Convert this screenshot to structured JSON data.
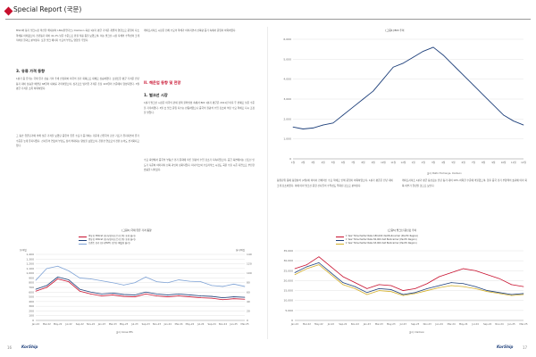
{
  "header": {
    "title": "Special Report (국문)"
  },
  "left_page": {
    "paragraphs": [
      "MSCI와 동기 벌크시장 확산한 해사분야 LNG(천연가스) Clarkson 측정 1분기 평균 가격은 개별적 영향으로 운임이 다소 약세를 이어왔으며, 전년동기 대비 41.2% 낮은 수준으로 환율 적용 등을 보였으며, 이는 벌크선 시장 자체의 수익성이 크게 저하된 결과로 분석된다. 또한 벌크 에너지 수요의 부진도 영향을 주었다.",
      "케이프사이즈 시장은 전체 수요의 약세가 이어지면서 선복량 증가 속에서 운임이 하락하였다."
    ],
    "section3": {
      "heading": "3. 유류 가격 동향",
      "paragraphs": [
        "1분기 중 유가는 국제 유가 상승 가격 추세 안정화와 미국의 경기 회복으로 대체로 상승하였다. 브렌트유 평균 가격은 전년 동기 대비 상승한 배럴당 68달러 내외를 기록하였으며, 싱가포르 벙커유 가격은 톤당 420달러 수준에서 형성되었다. 3월 평균 가격은 소폭 하락하였다.",
        "그 동안 유류단가에 의해 낮은 가격을 보였던 중유의 유류 수요가 증가하는 가운데 산유국의 감산 기조가 유지되면서 유가 수준은 높게 유지되었다. 선사들의 연료비 부담도 점차 확대되는 양상을 보였으며, 친환경 연료로의 전환 논의도 본격화되고 있다.",
        "향후 유가는 OPEC+의 감산 정책과 세계 경기 흐름에 따라 변동성이 커질 것으로 예상되며, 해운업계는 연료 효율 개선 노력을 지속할 필요가 있다."
      ]
    },
    "chart": {
      "title": "[그림4] 국제 유류 가격 동향",
      "legend": [
        "중유유 380cst (유가/싱가포르) (단위: 톤당 달러)",
        "중유유 180cst (유가/싱가포르) (단위: 톤당 달러)",
        "브렌트 유가 (유가/WTI) (단위: 배럴당 달러)"
      ],
      "left_axis_title": "톤/배럴",
      "right_axis_title": "달러/배럴",
      "source": "출처: Korea PPS"
    }
  },
  "right_page": {
    "section": {
      "heading": "1. 벌크선 시장",
      "paragraphs": [
        "1분기 벌크선 시장은 미국의 관세 정책 불확실성 속에서 BDI 1분기 평균은 2011년 이후 두 번째로 낮은 수준을 기록하였다. 3월 초 벌크 운임 지수는 반등하였으나 중국의 철광석 수입 감소와 석탄 수요 약세로 다시 조정을 받았다.",
        "수요 측면에서 중국의 부동산 경기 둔화에 따른 철광석 수입 감소가 지속되었으며, 공급 측면에서는 신조선 인도가 꾸준히 이어지며 선복 과잉이 심화되었다. 파나막스와 수프라막스 시장도 곡물 수출 시즌 지연으로 부진한 흐름을 나타냈다."
      ]
    },
    "section_ii": {
      "heading": "II. 해운업 동향 및 전망"
    },
    "top_chart": {
      "title": "[그림1] BDI 추이",
      "source": "출처: Baltic Exchange, Clarkson",
      "chart_data": {
        "type": "line",
        "title": "BDI 추이",
        "x": [
          "1월",
          "2월",
          "3월",
          "4월",
          "5월",
          "6월",
          "7월",
          "8월",
          "9월",
          "10월",
          "11월",
          "12월",
          "1월",
          "2월",
          "3월",
          "4월",
          "5월",
          "6월",
          "7월",
          "8월",
          "9월",
          "10월",
          "11월",
          "12월"
        ],
        "series": [
          {
            "values": [
              1600,
              1500,
              1550,
              1700,
              1800,
              2200,
              2600,
              3000,
              3400,
              4000,
              4600,
              4800,
              5100,
              5400,
              5600,
              5200,
              4700,
              4200,
              3700,
              3200,
              2700,
              2200,
              1900,
              1700
            ]
          }
        ],
        "ylim": [
          0,
          6000
        ],
        "yticks": [
          0,
          1000,
          2000,
          3000,
          4000,
          5000,
          6000
        ]
      }
    },
    "mid_paragraphs": [
      "동원단위 등에 동향분석 (2월)에 이어서 전체적인 수요 약세로 인해 운임이 하락하였으며, 1분기 평균은 전년 대비 크게 감소하였다. 이에 따라 벌크선 운항 선사들의 수익성도 악화된 것으로 분석된다.",
      "케이프사이즈 1분기 평균 용선료는 전년 동기 대비 18% 하락한 수준에 머물렀으며, 향후 중국 경기 부양책의 효과에 따라 회복 여부가 결정될 것으로 보인다."
    ],
    "chart": {
      "title": "[그림5] 벌크선 용선료 추이",
      "legend": [
        "1 Year Timecharter Rate 180,000 dwt Bulkcarrier (Pacific Region)",
        "1 Year Timecharter Rate 82,000 dwt Bulkcarrier (Pacific Region)",
        "1 Year Timecharter Rate 63,000 dwt Bulkcarrier (Pacific Region)"
      ],
      "source": "출처: Clarkson"
    }
  },
  "oil_chart_data": {
    "type": "line",
    "title": "국제 유류 가격 동향",
    "x": [
      "Jan-22",
      "Mar-22",
      "May-22",
      "Jul-22",
      "Sep-22",
      "Nov-22",
      "Jan-23",
      "Mar-23",
      "May-23",
      "Jul-23",
      "Sep-23",
      "Nov-23",
      "Jan-24",
      "Mar-24",
      "May-24",
      "Jul-24",
      "Sep-24",
      "Nov-24",
      "Jan-25",
      "Mar-25"
    ],
    "series": [
      {
        "name": "중유유 380cst",
        "color": "#c8102e",
        "values": [
          620,
          700,
          880,
          820,
          620,
          560,
          520,
          540,
          510,
          500,
          560,
          520,
          500,
          520,
          500,
          480,
          470,
          440,
          460,
          450
        ]
      },
      {
        "name": "중유유 180cst",
        "color": "#1d3f7a",
        "values": [
          660,
          740,
          920,
          860,
          660,
          600,
          560,
          580,
          550,
          540,
          600,
          560,
          540,
          560,
          540,
          520,
          510,
          480,
          500,
          490
        ]
      },
      {
        "name": "브렌트 유가",
        "color": "#7fa3d6",
        "values": [
          85,
          110,
          115,
          105,
          90,
          88,
          84,
          80,
          75,
          80,
          92,
          82,
          80,
          86,
          83,
          82,
          74,
          72,
          77,
          72
        ]
      }
    ],
    "ylim_left": [
      0,
      1400
    ],
    "yticks_left": [
      0,
      100,
      200,
      300,
      400,
      500,
      600,
      700,
      800,
      900,
      1000,
      1100,
      1200,
      1300,
      1400
    ],
    "ylim_right": [
      0,
      140
    ],
    "yticks_right": [
      0,
      20,
      40,
      60,
      80,
      100,
      120,
      140
    ]
  },
  "tc_chart_data": {
    "type": "line",
    "title": "벌크선 용선료 추이",
    "x": [
      "Jan-22",
      "Mar-22",
      "May-22",
      "Jul-22",
      "Sep-22",
      "Nov-22",
      "Jan-23",
      "Mar-23",
      "May-23",
      "Jul-23",
      "Sep-23",
      "Nov-23",
      "Jan-24",
      "Mar-24",
      "May-24",
      "Jul-24",
      "Sep-24",
      "Nov-24",
      "Jan-25",
      "Mar-25"
    ],
    "series": [
      {
        "name": "180,000 dwt",
        "color": "#c8102e",
        "values": [
          26000,
          28000,
          32000,
          27000,
          22000,
          19000,
          16000,
          18000,
          17500,
          15000,
          16000,
          18500,
          22000,
          24000,
          26000,
          25000,
          23000,
          21000,
          18000,
          17000
        ]
      },
      {
        "name": "82,000 dwt",
        "color": "#1d3f7a",
        "values": [
          24000,
          27000,
          29000,
          24000,
          19000,
          17000,
          14000,
          16000,
          15500,
          13000,
          14000,
          16000,
          17500,
          19000,
          18500,
          17000,
          15000,
          14000,
          13000,
          13500
        ]
      },
      {
        "name": "63,000 dwt",
        "color": "#d4b02a",
        "values": [
          23000,
          26000,
          28000,
          23000,
          18000,
          16000,
          13000,
          15000,
          14500,
          12500,
          13500,
          15000,
          16500,
          17500,
          17000,
          16000,
          14500,
          13500,
          12500,
          13000
        ]
      }
    ],
    "ylim": [
      0,
      35000
    ],
    "yticks": [
      0,
      5000,
      10000,
      15000,
      20000,
      25000,
      30000,
      35000
    ]
  },
  "footer": {
    "left_page_number": "16",
    "right_page_number": "17",
    "logo": "KorShip"
  },
  "colors": {
    "accent": "#c8102e",
    "navy": "#1d3f7a",
    "bdi_line": "#1d3f7a"
  }
}
